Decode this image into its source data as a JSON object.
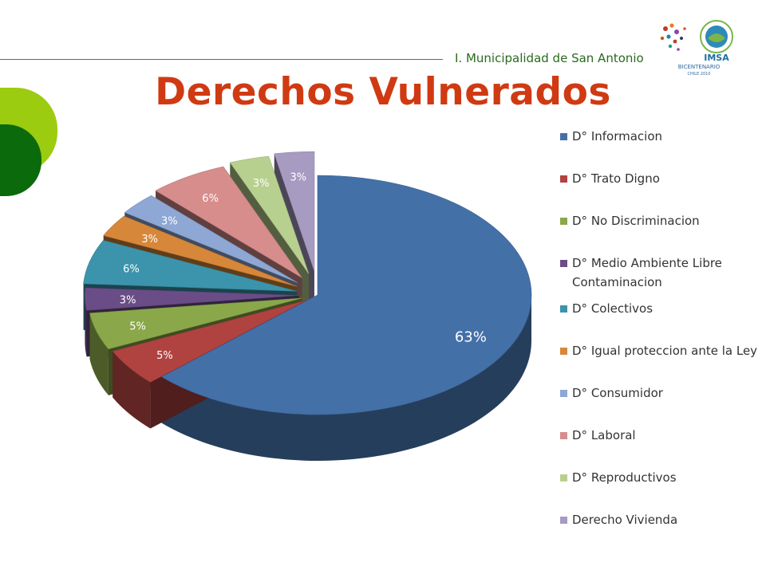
{
  "header": {
    "org_name": "I. Municipalidad de San Antonio",
    "title": "Derechos Vulnerados",
    "logo_text": "IMSA",
    "logo_subtext": "BICENTENARIO",
    "logo_subtext2": "CHILE 2010"
  },
  "chart_data": {
    "type": "pie",
    "title": "Derechos Vulnerados",
    "legend_position": "right",
    "categories": [
      "D° Informacion",
      "D° Trato Digno",
      "D° No Discriminacion",
      "D° Medio Ambiente Libre Contaminacion",
      "D° Colectivos",
      "D° Igual proteccion ante la Ley",
      "D° Consumidor",
      "D° Laboral",
      "D° Reproductivos",
      "Derecho Vivienda"
    ],
    "values": [
      63,
      5,
      5,
      3,
      6,
      3,
      3,
      6,
      3,
      3
    ],
    "data_labels": [
      "63%",
      "5%",
      "5%",
      "3%",
      "6%",
      "3%",
      "3%",
      "6%",
      "3%",
      "3%"
    ],
    "colors": [
      "#4470a8",
      "#b04340",
      "#8aa84a",
      "#6a4d86",
      "#3b94ab",
      "#d6873a",
      "#8ea7d4",
      "#d68d8c",
      "#b8d08f",
      "#a79bc2"
    ]
  }
}
